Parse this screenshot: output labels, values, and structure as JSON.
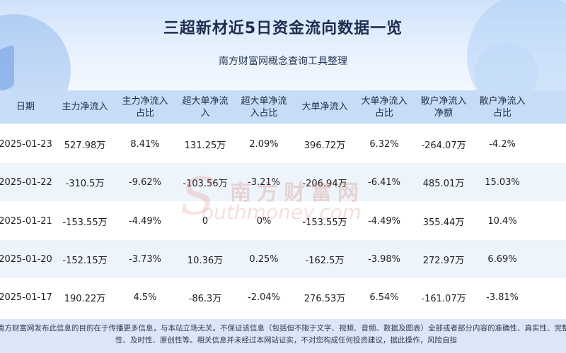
{
  "header": {
    "title": "三超新材近5日资金流向数据一览",
    "subtitle": "南方财富网概念查询工具整理"
  },
  "table": {
    "columns": [
      "日期",
      "主力净流入",
      "主力净流入\n占比",
      "超大单净流\n入",
      "超大单净流\n入占比",
      "大单净流入",
      "大单净流入\n占比",
      "散户净流入\n净额",
      "散户净流入\n占比"
    ],
    "rows": [
      [
        "2025-01-23",
        "527.98万",
        "8.41%",
        "131.25万",
        "2.09%",
        "396.72万",
        "6.32%",
        "-264.07万",
        "-4.2%"
      ],
      [
        "2025-01-22",
        "-310.5万",
        "-9.62%",
        "-103.56万",
        "-3.21%",
        "-206.94万",
        "-6.41%",
        "485.01万",
        "15.03%"
      ],
      [
        "2025-01-21",
        "-153.55万",
        "-4.49%",
        "0",
        "0%",
        "-153.55万",
        "-4.49%",
        "355.44万",
        "10.4%"
      ],
      [
        "2025-01-20",
        "-152.15万",
        "-3.73%",
        "10.36万",
        "0.25%",
        "-162.5万",
        "-3.98%",
        "272.97万",
        "6.69%"
      ],
      [
        "2025-01-17",
        "190.22万",
        "4.5%",
        "-86.3万",
        "-2.04%",
        "276.53万",
        "6.54%",
        "-161.07万",
        "-3.81%"
      ]
    ]
  },
  "watermark": {
    "cn": "南方财富网",
    "en": "outhmoney.com"
  },
  "footer": {
    "line1": "南方财富网发布此信息的目的在于传播更多信息，与本站立场无关。不保证该信息（包括但不限于文字、视频、音频、数据及图表）全部或者部分内容的准确性、真实性、完整性、有效",
    "line2": "性、及时性、原创性等。相关信息并未经过本网站证实，不对您构成任何投资建议，据此操作，风险自担"
  }
}
